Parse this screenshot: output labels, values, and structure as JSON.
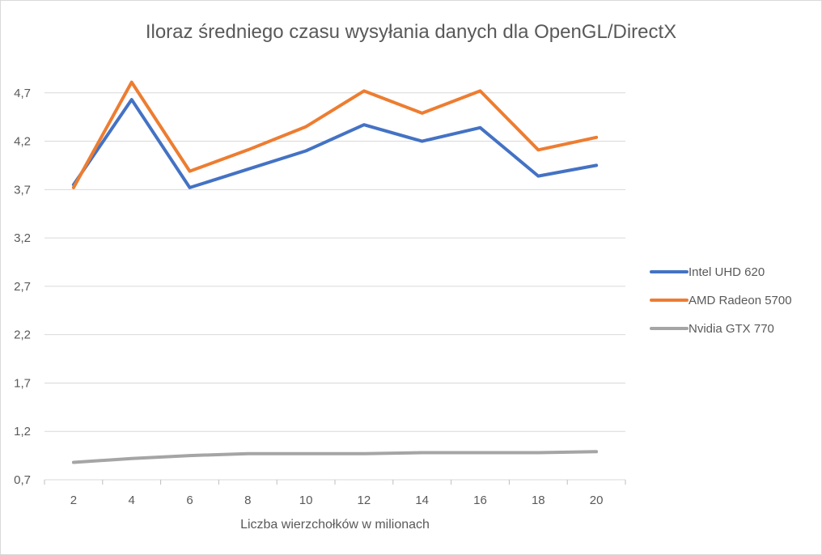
{
  "chart_data": {
    "type": "line",
    "title": "Iloraz średniego czasu wysyłania danych dla OpenGL/DirectX",
    "xlabel": "Liczba wierzchołków w milionach",
    "ylabel": "",
    "categories": [
      "2",
      "4",
      "6",
      "8",
      "10",
      "12",
      "14",
      "16",
      "18",
      "20"
    ],
    "y_ticks": [
      "0,7",
      "1,2",
      "1,7",
      "2,2",
      "2,7",
      "3,2",
      "3,7",
      "4,2",
      "4,7"
    ],
    "ylim": [
      0.7,
      5.2
    ],
    "grid": true,
    "legend_position": "right",
    "series": [
      {
        "name": "Intel UHD 620",
        "color": "#4472C4",
        "values": [
          3.75,
          4.63,
          3.72,
          3.91,
          4.1,
          4.37,
          4.2,
          4.34,
          3.84,
          3.95
        ]
      },
      {
        "name": "AMD Radeon 5700",
        "color": "#ED7D31",
        "values": [
          3.72,
          4.81,
          3.89,
          4.11,
          4.35,
          4.72,
          4.49,
          4.72,
          4.11,
          4.24
        ]
      },
      {
        "name": "Nvidia GTX 770",
        "color": "#A5A5A5",
        "values": [
          0.88,
          0.92,
          0.95,
          0.97,
          0.97,
          0.97,
          0.98,
          0.98,
          0.98,
          0.99
        ]
      }
    ]
  }
}
